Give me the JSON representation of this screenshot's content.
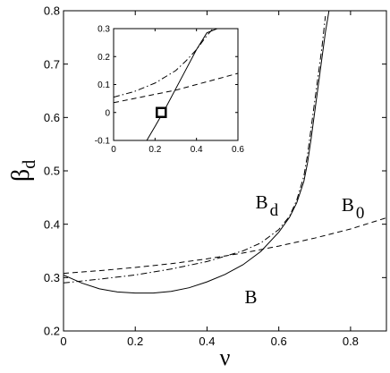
{
  "chart_data": [
    {
      "type": "line",
      "xlabel": "ν",
      "ylabel": "β",
      "ylabel_sub": "d",
      "xlim": [
        0,
        0.9
      ],
      "ylim": [
        0.2,
        0.8
      ],
      "xticks": [
        0,
        0.2,
        0.4,
        0.6,
        0.8
      ],
      "xtick_labels": [
        "0",
        "0.2",
        "0.4",
        "0.6",
        "0.8"
      ],
      "yticks": [
        0.2,
        0.3,
        0.4,
        0.5,
        0.6,
        0.7,
        0.8
      ],
      "ytick_labels": [
        "0.2",
        "0.3",
        "0.4",
        "0.5",
        "0.6",
        "0.7",
        "0.8"
      ],
      "grid": false,
      "series": [
        {
          "name": "B",
          "style": "solid",
          "x": [
            0,
            0.05,
            0.1,
            0.15,
            0.2,
            0.25,
            0.3,
            0.35,
            0.4,
            0.45,
            0.5,
            0.55,
            0.6,
            0.63,
            0.65,
            0.67,
            0.68,
            0.69,
            0.7,
            0.71,
            0.72,
            0.73,
            0.74
          ],
          "y": [
            0.305,
            0.29,
            0.279,
            0.273,
            0.271,
            0.271,
            0.274,
            0.281,
            0.292,
            0.306,
            0.324,
            0.349,
            0.385,
            0.413,
            0.44,
            0.48,
            0.515,
            0.56,
            0.61,
            0.66,
            0.71,
            0.76,
            0.8
          ]
        },
        {
          "name": "B_d",
          "style": "dashdot",
          "x": [
            0,
            0.1,
            0.2,
            0.3,
            0.4,
            0.5,
            0.55,
            0.6,
            0.63,
            0.65,
            0.67,
            0.68,
            0.69,
            0.7,
            0.71,
            0.72,
            0.73
          ],
          "y": [
            0.29,
            0.297,
            0.305,
            0.316,
            0.33,
            0.35,
            0.365,
            0.39,
            0.415,
            0.445,
            0.49,
            0.53,
            0.58,
            0.63,
            0.68,
            0.73,
            0.79
          ]
        },
        {
          "name": "B_0",
          "style": "dashed",
          "x": [
            0,
            0.1,
            0.2,
            0.3,
            0.4,
            0.5,
            0.6,
            0.7,
            0.8,
            0.9
          ],
          "y": [
            0.308,
            0.313,
            0.319,
            0.326,
            0.335,
            0.346,
            0.359,
            0.374,
            0.391,
            0.412
          ]
        }
      ],
      "annotations": [
        {
          "text": "B",
          "sub": "d",
          "x": 0.535,
          "y": 0.43
        },
        {
          "text": "B",
          "sub": "0",
          "x": 0.775,
          "y": 0.425
        },
        {
          "text": "B",
          "sub": "",
          "x": 0.505,
          "y": 0.252
        }
      ]
    },
    {
      "type": "line",
      "role": "inset",
      "xlim": [
        0,
        0.6
      ],
      "ylim": [
        -0.1,
        0.3
      ],
      "xticks": [
        0,
        0.2,
        0.4,
        0.6
      ],
      "xtick_labels": [
        "0",
        "0.2",
        "0.4",
        "0.6"
      ],
      "yticks": [
        -0.1,
        0,
        0.1,
        0.2,
        0.3
      ],
      "ytick_labels": [
        "-0.1",
        "0",
        "0.1",
        "0.2",
        "0.3"
      ],
      "grid": false,
      "series": [
        {
          "name": "",
          "style": "solid",
          "x": [
            0.16,
            0.2,
            0.25,
            0.3,
            0.35,
            0.4,
            0.45,
            0.5
          ],
          "y": [
            -0.1,
            -0.05,
            0.015,
            0.085,
            0.155,
            0.225,
            0.285,
            0.3
          ]
        },
        {
          "name": "",
          "style": "dashdot",
          "x": [
            0,
            0.1,
            0.2,
            0.3,
            0.35,
            0.4,
            0.45,
            0.48
          ],
          "y": [
            0.055,
            0.075,
            0.105,
            0.15,
            0.185,
            0.225,
            0.275,
            0.3
          ]
        },
        {
          "name": "",
          "style": "dashed",
          "x": [
            0,
            0.1,
            0.2,
            0.3,
            0.4,
            0.5,
            0.6
          ],
          "y": [
            0.035,
            0.05,
            0.065,
            0.08,
            0.1,
            0.12,
            0.14
          ]
        }
      ],
      "marker": {
        "shape": "square",
        "x": 0.23,
        "y": 0
      }
    }
  ]
}
